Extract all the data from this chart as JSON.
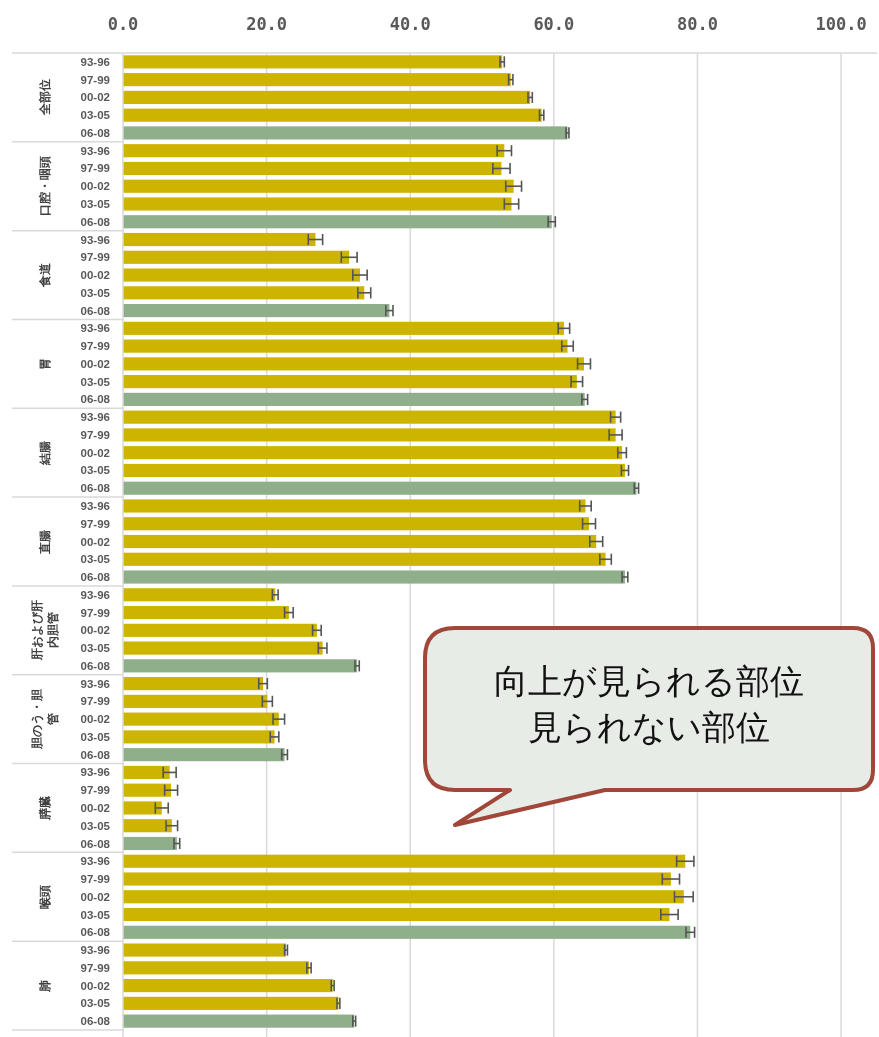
{
  "chart_data": {
    "type": "bar",
    "orientation": "horizontal",
    "categories": [
      "93-96",
      "97-99",
      "00-02",
      "03-05",
      "06-08",
      "93-96",
      "97-99",
      "00-02",
      "03-05",
      "06-08",
      "93-96",
      "97-99",
      "00-02",
      "03-05",
      "06-08",
      "93-96",
      "97-99",
      "00-02",
      "03-05",
      "06-08",
      "93-96",
      "97-99",
      "00-02",
      "03-05",
      "06-08",
      "93-96",
      "97-99",
      "00-02",
      "03-05",
      "06-08",
      "93-96",
      "97-99",
      "00-02",
      "03-05",
      "06-08",
      "93-96",
      "97-99",
      "00-02",
      "03-05",
      "06-08",
      "93-96",
      "97-99",
      "00-02",
      "03-05",
      "06-08",
      "93-96",
      "97-99",
      "00-02",
      "03-05",
      "06-08",
      "93-96",
      "97-99",
      "00-02",
      "03-05",
      "06-08"
    ],
    "values": [
      52.8,
      54.0,
      56.7,
      58.3,
      61.9,
      53.1,
      52.7,
      54.4,
      54.1,
      59.7,
      26.8,
      31.5,
      33.0,
      33.6,
      37.1,
      61.4,
      61.9,
      64.2,
      63.2,
      64.3,
      68.6,
      68.6,
      69.5,
      69.9,
      71.5,
      64.4,
      64.9,
      65.9,
      67.2,
      69.9,
      21.2,
      23.1,
      27.0,
      27.8,
      32.6,
      19.5,
      20.1,
      21.7,
      21.1,
      22.5,
      6.5,
      6.7,
      5.4,
      6.8,
      7.5,
      78.3,
      76.3,
      78.1,
      76.1,
      79.0,
      22.7,
      25.9,
      29.2,
      30.0,
      32.2
    ],
    "errors": [
      0.3,
      0.3,
      0.3,
      0.3,
      0.2,
      1.0,
      1.2,
      1.1,
      1.0,
      0.5,
      1.0,
      1.1,
      1.0,
      0.9,
      0.5,
      0.8,
      0.8,
      0.9,
      0.8,
      0.4,
      0.7,
      0.9,
      0.6,
      0.5,
      0.3,
      0.8,
      0.9,
      0.9,
      0.8,
      0.4,
      0.4,
      0.6,
      0.6,
      0.6,
      0.3,
      0.6,
      0.7,
      0.8,
      0.6,
      0.4,
      0.9,
      0.9,
      0.9,
      0.8,
      0.4,
      1.2,
      1.2,
      1.3,
      1.2,
      0.6,
      0.2,
      0.3,
      0.2,
      0.2,
      0.2
    ],
    "colors": [
      "#cdb400",
      "#cdb400",
      "#cdb400",
      "#cdb400",
      "#8faf8a",
      "#cdb400",
      "#cdb400",
      "#cdb400",
      "#cdb400",
      "#8faf8a",
      "#cdb400",
      "#cdb400",
      "#cdb400",
      "#cdb400",
      "#8faf8a",
      "#cdb400",
      "#cdb400",
      "#cdb400",
      "#cdb400",
      "#8faf8a",
      "#cdb400",
      "#cdb400",
      "#cdb400",
      "#cdb400",
      "#8faf8a",
      "#cdb400",
      "#cdb400",
      "#cdb400",
      "#cdb400",
      "#8faf8a",
      "#cdb400",
      "#cdb400",
      "#cdb400",
      "#cdb400",
      "#8faf8a",
      "#cdb400",
      "#cdb400",
      "#cdb400",
      "#cdb400",
      "#8faf8a",
      "#cdb400",
      "#cdb400",
      "#cdb400",
      "#cdb400",
      "#8faf8a",
      "#cdb400",
      "#cdb400",
      "#cdb400",
      "#cdb400",
      "#8faf8a",
      "#cdb400",
      "#cdb400",
      "#cdb400",
      "#cdb400",
      "#8faf8a"
    ],
    "xlim": [
      0,
      105
    ],
    "xticks": [
      {
        "value": 0,
        "label": "0.0"
      },
      {
        "value": 20,
        "label": "20.0"
      },
      {
        "value": 40,
        "label": "40.0"
      },
      {
        "value": 60,
        "label": "60.0"
      },
      {
        "value": 80,
        "label": "80.0"
      },
      {
        "value": 100,
        "label": "100.0"
      }
    ],
    "grid": "x",
    "annotations": [
      "全部位",
      "口腔・咽頭",
      "食道",
      "胃",
      "結腸",
      "直腸",
      "肝および肝内胆管",
      "胆のう・胆管",
      "膵臓",
      "喉頭",
      "肺",
      "向上が見られる部位",
      "見られない部位"
    ]
  }
}
